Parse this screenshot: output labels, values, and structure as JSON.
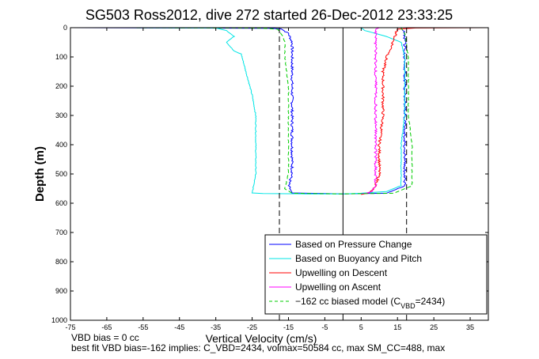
{
  "chart_data": {
    "type": "line",
    "title": "SG503 Ross2012, dive 272 started 26-Dec-2012 23:33:25",
    "xlabel": "Vertical Velocity (cm/s)",
    "ylabel": "Depth (m)",
    "xlim": [
      -75,
      40
    ],
    "ylim": [
      1000,
      0
    ],
    "y_reversed": true,
    "xticks": [
      -75,
      -65,
      -55,
      -45,
      -35,
      -25,
      -15,
      -5,
      5,
      15,
      25,
      35
    ],
    "yticks": [
      0,
      100,
      200,
      300,
      400,
      500,
      600,
      700,
      800,
      900,
      1000
    ],
    "grid": false,
    "legend_position": "bottom-right",
    "reference_lines": {
      "dashed_x": [
        -17.5,
        17.5
      ],
      "solid_x": [
        0
      ]
    },
    "series": [
      {
        "name": "Based on Pressure Change",
        "color": "#0000ff",
        "style": "solid",
        "x": [
          -75,
          -45,
          -20,
          -17,
          -15,
          -14,
          -14,
          -14,
          -14,
          -14,
          -14,
          -15,
          -14,
          -5,
          0,
          5,
          12,
          17,
          17,
          17,
          17,
          17,
          17,
          17,
          16
        ],
        "y": [
          0,
          1,
          2,
          4,
          20,
          50,
          100,
          200,
          300,
          400,
          500,
          540,
          565,
          567,
          568,
          567,
          566,
          540,
          500,
          400,
          300,
          200,
          100,
          20,
          1
        ]
      },
      {
        "name": "Based on Buoyancy and Pitch",
        "color": "#00e5e5",
        "style": "solid",
        "x": [
          -60,
          -35,
          -32,
          -30,
          -32,
          -30,
          -28,
          -25,
          -24,
          -24,
          -24,
          -25,
          -22,
          -10,
          0,
          5,
          12,
          16,
          16,
          16,
          17,
          17,
          17,
          16,
          12,
          6,
          5
        ],
        "y": [
          0,
          1,
          10,
          30,
          50,
          80,
          90,
          230,
          300,
          400,
          500,
          565,
          567,
          568,
          568,
          566,
          560,
          540,
          500,
          400,
          300,
          200,
          100,
          50,
          30,
          10,
          0
        ]
      },
      {
        "name": "Upwelling on Descent",
        "color": "#ff0000",
        "style": "solid",
        "x": [
          40,
          20,
          15,
          14,
          13,
          12,
          11,
          11,
          11,
          10,
          10,
          10,
          9,
          8,
          7,
          5
        ],
        "y": [
          0,
          1,
          5,
          40,
          80,
          100,
          150,
          200,
          300,
          400,
          450,
          500,
          540,
          555,
          565,
          570
        ]
      },
      {
        "name": "Upwelling on Ascent",
        "color": "#ff00ff",
        "style": "solid",
        "x": [
          6,
          8,
          9,
          9,
          9,
          9,
          9,
          9,
          9,
          9,
          9,
          10
        ],
        "y": [
          567,
          560,
          540,
          500,
          400,
          300,
          200,
          100,
          50,
          20,
          5,
          0
        ]
      },
      {
        "name": "−162 cc biased model (CVBD=2434)",
        "color": "#00cc00",
        "style": "dashed",
        "x": [
          -62,
          -30,
          -22,
          -18,
          -17,
          -16,
          -16,
          -15,
          -15,
          -15,
          -15,
          -16,
          -14,
          0,
          14,
          19,
          19,
          19,
          18,
          18,
          18,
          17,
          16
        ],
        "y": [
          0,
          1,
          2,
          5,
          20,
          50,
          100,
          200,
          300,
          400,
          500,
          550,
          566,
          568,
          566,
          540,
          500,
          400,
          300,
          200,
          100,
          20,
          1
        ]
      }
    ]
  },
  "legend_vbd_subscript": "VBD",
  "footer": {
    "line1": "VBD bias = 0 cc",
    "line2": "best fit VBD bias=-162 implies: C_VBD=2434, volmax=50584 cc, max SM_CC=488, max"
  }
}
